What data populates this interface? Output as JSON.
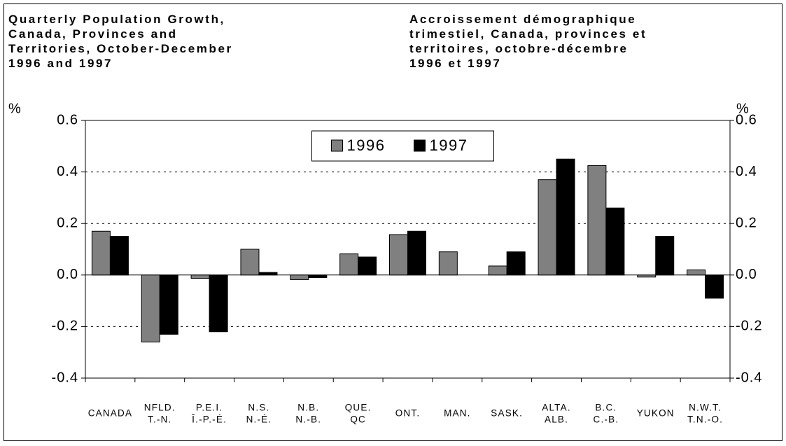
{
  "chart_data": {
    "type": "bar",
    "title": [
      "Quarterly Population Growth,",
      "Canada, Provinces and",
      "Territories, October-December",
      "1996 and 1997"
    ],
    "title_fr": [
      "Accroissement démographique",
      "trimestiel, Canada, provinces et",
      "territoires, octobre-décembre",
      "1996 et 1997"
    ],
    "y_label": "%",
    "y2_label": "%",
    "categories": [
      [
        "CANADA"
      ],
      [
        "NFLD.",
        "T.-N."
      ],
      [
        "P.E.I.",
        "Î.-P.-É."
      ],
      [
        "N.S.",
        "N.-É."
      ],
      [
        "N.B.",
        "N.-B."
      ],
      [
        "QUE.",
        "QC"
      ],
      [
        "ONT."
      ],
      [
        "MAN."
      ],
      [
        "SASK."
      ],
      [
        "ALTA.",
        "ALB."
      ],
      [
        "B.C.",
        "C.-B."
      ],
      [
        "YUKON"
      ],
      [
        "N.W.T.",
        "T.N.-O."
      ]
    ],
    "series": [
      {
        "name": "1996",
        "color": "#808080",
        "values": [
          0.17,
          -0.26,
          -0.013,
          0.1,
          -0.018,
          0.082,
          0.157,
          0.09,
          0.035,
          0.37,
          0.425,
          -0.008,
          0.02
        ]
      },
      {
        "name": "1997",
        "color": "#000000",
        "values": [
          0.15,
          -0.23,
          -0.22,
          0.01,
          -0.01,
          0.07,
          0.17,
          null,
          0.09,
          0.45,
          0.26,
          0.15,
          -0.09
        ]
      }
    ],
    "ylim": [
      -0.4,
      0.6
    ],
    "yticks": [
      -0.4,
      -0.2,
      {
        "value": 0,
        "label": "0.0"
      },
      0.2,
      0.4,
      0.6
    ],
    "y2lim": [
      -0.4,
      0.6
    ],
    "y2ticks": [
      -0.4,
      -0.2,
      {
        "value": 0,
        "label": "0.0"
      },
      0.2,
      0.4,
      0.6
    ],
    "grid": true,
    "legend": "top"
  }
}
